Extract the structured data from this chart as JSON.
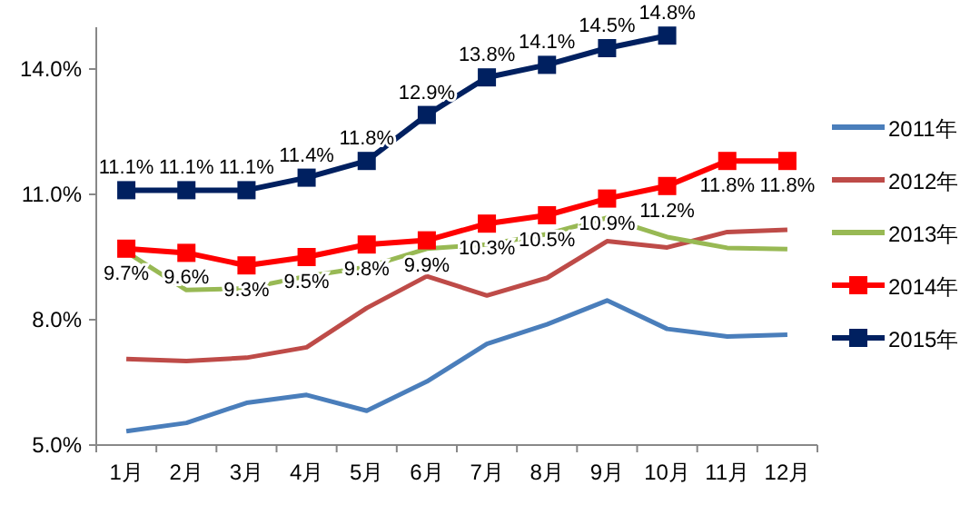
{
  "chart_data": {
    "type": "line",
    "categories": [
      "1月",
      "2月",
      "3月",
      "4月",
      "5月",
      "6月",
      "7月",
      "8月",
      "9月",
      "10月",
      "11月",
      "12月"
    ],
    "ylim": [
      5,
      15
    ],
    "yticks": [
      {
        "value": 5,
        "label": "5.0%"
      },
      {
        "value": 8,
        "label": "8.0%"
      },
      {
        "value": 11,
        "label": "11.0%"
      },
      {
        "value": 14,
        "label": "14.0%"
      }
    ],
    "legend": "right",
    "grid": false,
    "series": [
      {
        "name": "2011年",
        "color": "#4a7ebb",
        "marker": "none",
        "values": [
          5.33,
          5.53,
          6.01,
          6.2,
          5.82,
          6.52,
          7.42,
          7.89,
          8.46,
          7.78,
          7.6,
          7.64
        ]
      },
      {
        "name": "2012年",
        "color": "#be4b48",
        "marker": "none",
        "values": [
          7.06,
          7.01,
          7.09,
          7.34,
          8.28,
          9.04,
          8.58,
          9.0,
          9.88,
          9.73,
          10.1,
          10.15
        ]
      },
      {
        "name": "2013年",
        "color": "#98b954",
        "marker": "none",
        "values": [
          9.62,
          8.71,
          8.75,
          9.04,
          9.26,
          9.7,
          9.8,
          10.05,
          10.44,
          9.98,
          9.72,
          9.69
        ]
      },
      {
        "name": "2014年",
        "color": "#ff0000",
        "marker": "square",
        "values": [
          9.7,
          9.6,
          9.3,
          9.5,
          9.8,
          9.9,
          10.3,
          10.5,
          10.9,
          11.2,
          11.8,
          11.8
        ],
        "value_labels": [
          "9.7%",
          "9.6%",
          "9.3%",
          "9.5%",
          "9.8%",
          "9.9%",
          "10.3%",
          "10.5%",
          "10.9%",
          "11.2%",
          "11.8%",
          "11.8%"
        ]
      },
      {
        "name": "2015年",
        "color": "#002060",
        "marker": "square",
        "values": [
          11.1,
          11.1,
          11.1,
          11.4,
          11.8,
          12.9,
          13.8,
          14.1,
          14.5,
          14.8,
          null,
          null
        ],
        "value_labels": [
          "11.1%",
          "11.1%",
          "11.1%",
          "11.4%",
          "11.8%",
          "12.9%",
          "13.8%",
          "14.1%",
          "14.5%",
          "14.8%",
          null,
          null
        ]
      }
    ]
  }
}
